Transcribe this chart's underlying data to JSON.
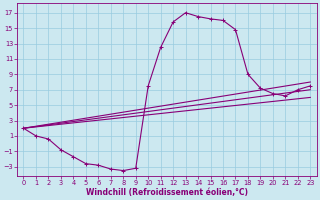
{
  "xlabel": "Windchill (Refroidissement éolien,°C)",
  "bg_color": "#cce8f0",
  "grid_color": "#99cce0",
  "line_color": "#880077",
  "xlim": [
    -0.5,
    23.5
  ],
  "ylim": [
    -4.2,
    18.2
  ],
  "xticks": [
    0,
    1,
    2,
    3,
    4,
    5,
    6,
    7,
    8,
    9,
    10,
    11,
    12,
    13,
    14,
    15,
    16,
    17,
    18,
    19,
    20,
    21,
    22,
    23
  ],
  "yticks": [
    -3,
    -1,
    1,
    3,
    5,
    7,
    9,
    11,
    13,
    15,
    17
  ],
  "curve_main_x": [
    0,
    1,
    2,
    3,
    4,
    5,
    6,
    7,
    8,
    9,
    10,
    11,
    12,
    13,
    14,
    15,
    16,
    17,
    18,
    19,
    20,
    21,
    22,
    23
  ],
  "curve_main_y": [
    2.0,
    1.0,
    0.6,
    -0.8,
    -1.7,
    -2.6,
    -2.8,
    -3.3,
    -3.5,
    -3.2,
    7.5,
    12.5,
    15.8,
    17.0,
    16.5,
    16.2,
    16.0,
    14.8,
    9.0,
    7.2,
    6.5,
    6.2,
    7.0,
    7.5
  ],
  "curve_line1_x": [
    0,
    23
  ],
  "curve_line1_y": [
    2.0,
    8.0
  ],
  "curve_line2_x": [
    0,
    23
  ],
  "curve_line2_y": [
    2.0,
    7.0
  ],
  "curve_line3_x": [
    0,
    23
  ],
  "curve_line3_y": [
    2.0,
    6.0
  ],
  "marker": "+",
  "markersize": 3.5,
  "linewidth": 0.8
}
